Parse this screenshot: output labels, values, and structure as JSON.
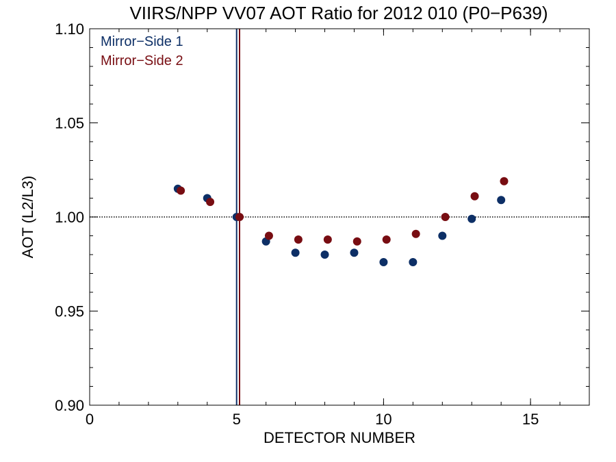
{
  "chart_data": {
    "type": "scatter",
    "title": "VIIRS/NPP VV07 AOT Ratio for 2012 010 (P0−P639)",
    "xlabel": "DETECTOR NUMBER",
    "ylabel": "AOT (L2/L3)",
    "xlim": [
      0,
      17
    ],
    "ylim": [
      0.9,
      1.1
    ],
    "xticks": [
      0,
      5,
      10,
      15
    ],
    "xtick_labels": [
      "0",
      "5",
      "10",
      "15"
    ],
    "xminor_step": 1,
    "yticks": [
      0.9,
      0.95,
      1.0,
      1.05,
      1.1
    ],
    "ytick_labels": [
      "0.90",
      "0.95",
      "1.00",
      "1.05",
      "1.10"
    ],
    "yminor_step": 0.01,
    "grid": false,
    "legend_position": "top-left",
    "reference_hline": 1.0,
    "reference_vlines": [
      {
        "x": 5.0,
        "color": "#0d2f66"
      },
      {
        "x": 5.1,
        "color": "#780d12"
      }
    ],
    "series": [
      {
        "name": "Mirror−Side 1",
        "color": "#0d2f66",
        "x": [
          3,
          4,
          5,
          6,
          7,
          8,
          9,
          10,
          11,
          12,
          13,
          14
        ],
        "y": [
          1.015,
          1.01,
          1.0,
          0.987,
          0.981,
          0.98,
          0.981,
          0.976,
          0.976,
          0.99,
          0.999,
          1.009
        ]
      },
      {
        "name": "Mirror−Side 2",
        "color": "#780d12",
        "x": [
          3.1,
          4.1,
          5.1,
          6.1,
          7.1,
          8.1,
          9.1,
          10.1,
          11.1,
          12.1,
          13.1,
          14.1
        ],
        "y": [
          1.014,
          1.008,
          1.0,
          0.99,
          0.988,
          0.988,
          0.987,
          0.988,
          0.991,
          1.0,
          1.011,
          1.019
        ]
      }
    ]
  }
}
